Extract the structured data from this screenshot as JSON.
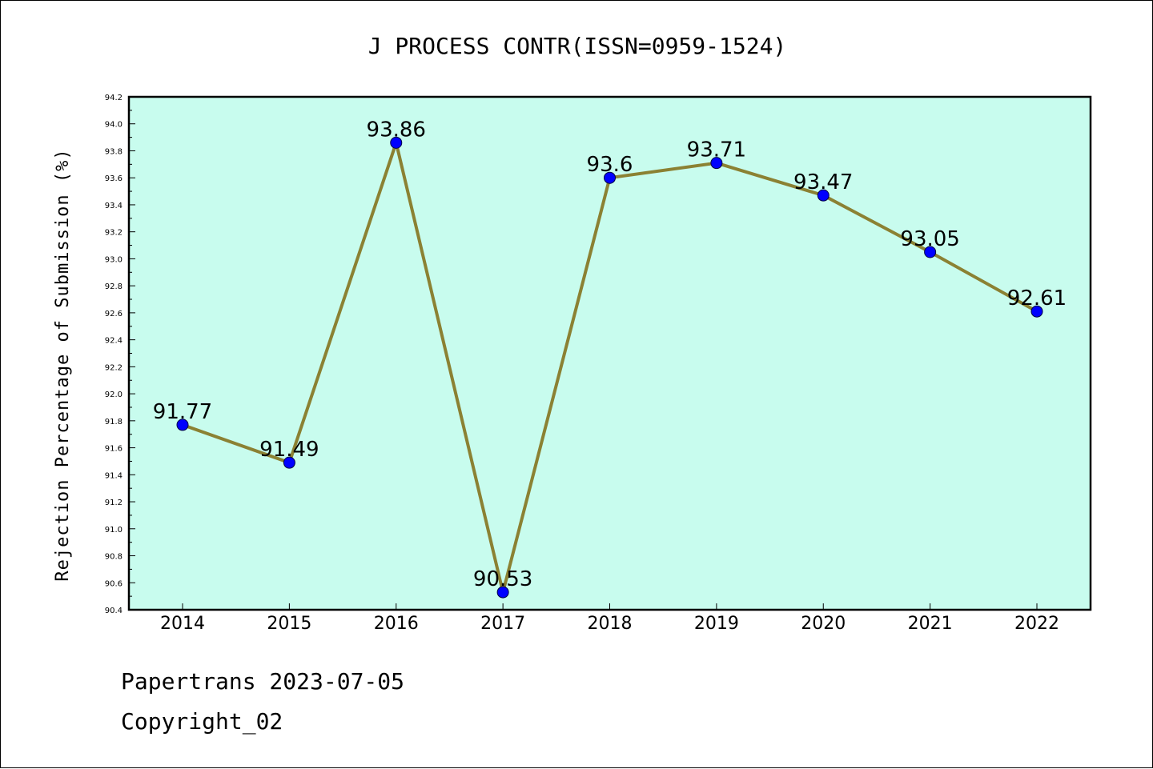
{
  "chart_data": {
    "type": "line",
    "title": "J PROCESS CONTR(ISSN=0959-1524)",
    "xlabel": "",
    "ylabel": "Rejection Percentage of Submission (%)",
    "categories": [
      "2014",
      "2015",
      "2016",
      "2017",
      "2018",
      "2019",
      "2020",
      "2021",
      "2022"
    ],
    "values": [
      91.77,
      91.49,
      93.86,
      90.53,
      93.6,
      93.71,
      93.47,
      93.05,
      92.61
    ],
    "data_labels": [
      "91.77",
      "91.49",
      "93.86",
      "90.53",
      "93.6",
      "93.71",
      "93.47",
      "93.05",
      "92.61"
    ],
    "ylim": [
      90.4,
      94.2
    ],
    "yticks": [
      "90.4",
      "90.6",
      "90.8",
      "91.0",
      "91.2",
      "91.4",
      "91.6",
      "91.8",
      "92.0",
      "92.2",
      "92.4",
      "92.6",
      "92.8",
      "93.0",
      "93.2",
      "93.4",
      "93.6",
      "93.8",
      "94.0",
      "94.2"
    ],
    "grid": false,
    "colors": {
      "plot_background": "#c8fcee",
      "line": "#8b8133",
      "marker": "#0000ff"
    }
  },
  "footer": {
    "line1": "Papertrans 2023-07-05",
    "line2": "Copyright_02"
  }
}
